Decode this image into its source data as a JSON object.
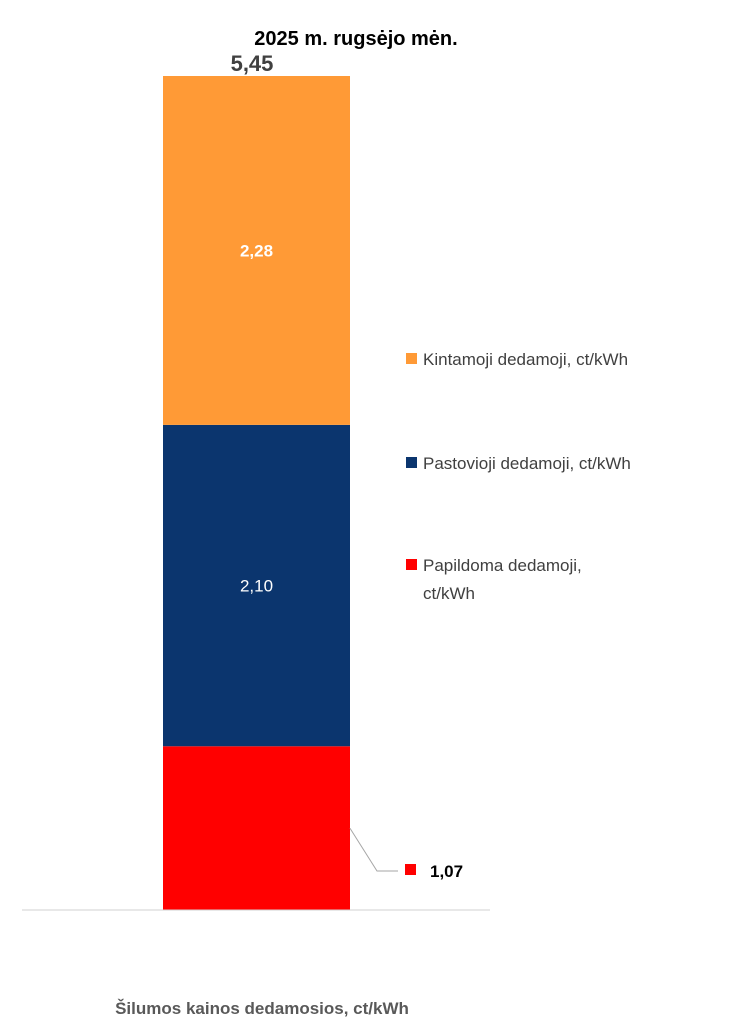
{
  "chart_data": {
    "type": "bar",
    "stacked": true,
    "title": "2025 m.  rugsėjo mėn.",
    "total_label": "5,45",
    "xlabel": "Šilumos kainos dedamosios, ct/kWh",
    "categories": [
      ""
    ],
    "series": [
      {
        "key": "papildoma",
        "name": "Papildoma dedamoji, ct/kWh",
        "values": [
          1.07
        ],
        "label": "1,07",
        "color": "#FF0000"
      },
      {
        "key": "pastovioji",
        "name": "Pastovioji dedamoji, ct/kWh",
        "values": [
          2.1
        ],
        "label": "2,10",
        "color": "#0B356E"
      },
      {
        "key": "kintamoji",
        "name": "Kintamoji dedamoji, ct/kWh",
        "values": [
          2.28
        ],
        "label": "2,28",
        "color": "#FF9A36"
      }
    ],
    "legend": {
      "position": "right",
      "order": [
        "kintamoji",
        "pastovioji",
        "papildoma"
      ]
    },
    "grid": false
  }
}
